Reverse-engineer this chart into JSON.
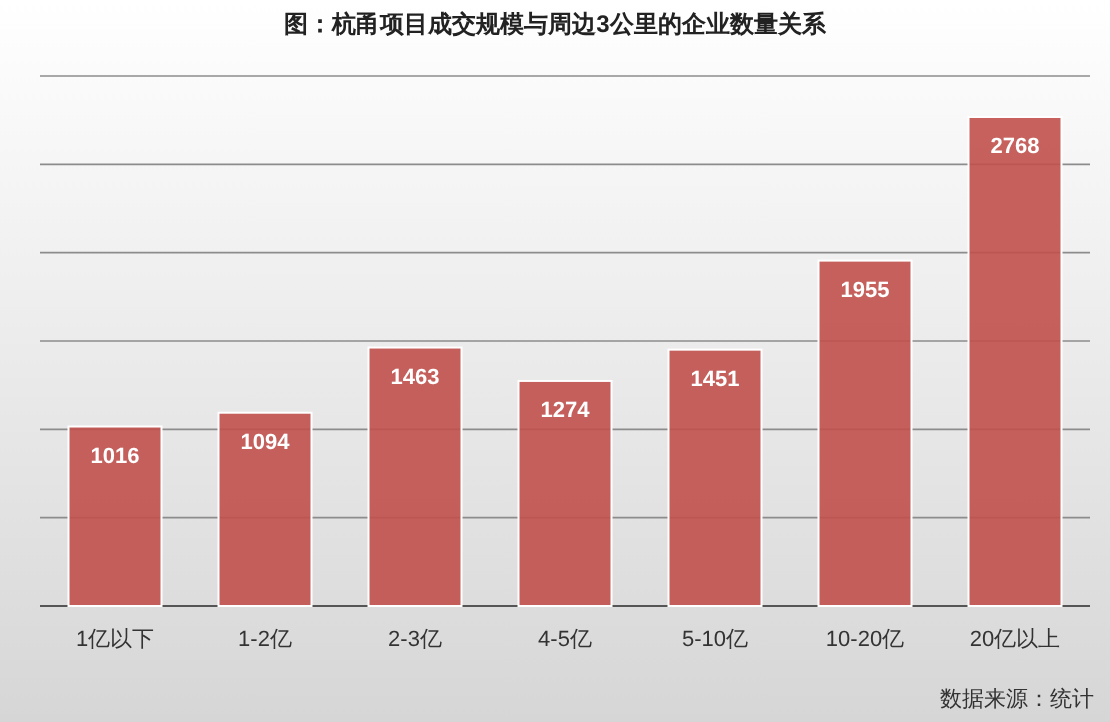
{
  "chart_data": {
    "type": "bar",
    "title": "图：杭甬项目成交规模与周边3公里的企业数量关系",
    "categories": [
      "1亿以下",
      "1-2亿",
      "2-3亿",
      "4-5亿",
      "5-10亿",
      "10-20亿",
      "20亿以上"
    ],
    "values": [
      1016,
      1094,
      1463,
      1274,
      1451,
      1955,
      2768
    ],
    "color": "#c0504d",
    "data_labels": true,
    "grid": "y",
    "ylim": [
      0,
      3000
    ],
    "yticks": [
      {
        "value": 0,
        "label": null
      },
      {
        "value": 500,
        "label": null
      },
      {
        "value": 1000,
        "label": null
      },
      {
        "value": 1500,
        "label": null
      },
      {
        "value": 2000,
        "label": null
      },
      {
        "value": 2500,
        "label": null
      },
      {
        "value": 3000,
        "label": null
      }
    ],
    "tick_labels": "x",
    "annotations": [
      "数据来源：统计"
    ]
  }
}
